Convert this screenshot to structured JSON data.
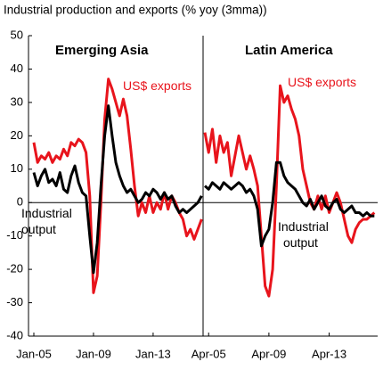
{
  "chart_data": {
    "type": "line",
    "title": "Industrial production and exports (% yoy (3mma))",
    "ylim": [
      -40,
      50
    ],
    "yticks": [
      -40,
      -30,
      -20,
      -10,
      0,
      10,
      20,
      30,
      40,
      50
    ],
    "grid": false,
    "panels": [
      {
        "title": "Emerging Asia",
        "xlim": [
          2005,
          2016.35
        ],
        "xticks": [
          {
            "value": 2005,
            "label": "Jan-05"
          },
          {
            "value": 2009,
            "label": "Jan-09"
          },
          {
            "value": 2013,
            "label": "Jan-13"
          }
        ],
        "x": [
          2005,
          2005.25,
          2005.5,
          2005.75,
          2006,
          2006.25,
          2006.5,
          2006.75,
          2007,
          2007.25,
          2007.5,
          2007.75,
          2008,
          2008.25,
          2008.5,
          2008.75,
          2009,
          2009.25,
          2009.5,
          2009.75,
          2010,
          2010.25,
          2010.5,
          2010.75,
          2011,
          2011.25,
          2011.5,
          2011.75,
          2012,
          2012.25,
          2012.5,
          2012.75,
          2013,
          2013.25,
          2013.5,
          2013.75,
          2014,
          2014.25,
          2014.5,
          2014.75,
          2015,
          2015.25,
          2015.5,
          2015.75,
          2016,
          2016.25
        ],
        "series": [
          {
            "color": "#e8141c",
            "values": [
              18,
              12,
              14,
              13,
              15,
              12,
              14,
              13,
              16,
              14,
              18,
              17,
              19,
              18,
              15,
              2,
              -27,
              -22,
              0,
              25,
              37,
              34,
              30,
              26,
              31,
              26,
              16,
              5,
              -4,
              0,
              -3,
              2,
              -3,
              0,
              -2,
              3,
              -2,
              2,
              0,
              -3,
              -5,
              -10,
              -8,
              -11,
              -8,
              -5
            ]
          },
          {
            "color": "#000000",
            "values": [
              9,
              5,
              8,
              10,
              6,
              7,
              5,
              9,
              4,
              3,
              8,
              11,
              6,
              3,
              2,
              -10,
              -21,
              -12,
              5,
              20,
              29,
              20,
              12,
              8,
              5,
              3,
              4,
              2,
              0,
              1,
              3,
              2,
              4,
              3,
              1,
              3,
              1,
              2,
              -1,
              -3,
              -2,
              -3,
              -2,
              -1,
              0,
              2
            ]
          }
        ],
        "annotations": [
          {
            "color": "#e8141c",
            "lines": [
              "US$ exports"
            ]
          },
          {
            "color": "#000000",
            "lines": [
              "Industrial",
              "output"
            ]
          }
        ]
      },
      {
        "title": "Latin America",
        "xlim": [
          2005,
          2016.35
        ],
        "xticks": [
          {
            "value": 2005.25,
            "label": "Apr-05"
          },
          {
            "value": 2009.25,
            "label": "Apr-09"
          },
          {
            "value": 2013.25,
            "label": "Apr-13"
          }
        ],
        "x": [
          2005,
          2005.25,
          2005.5,
          2005.75,
          2006,
          2006.25,
          2006.5,
          2006.75,
          2007,
          2007.25,
          2007.5,
          2007.75,
          2008,
          2008.25,
          2008.5,
          2008.75,
          2009,
          2009.25,
          2009.5,
          2009.75,
          2010,
          2010.25,
          2010.5,
          2010.75,
          2011,
          2011.25,
          2011.5,
          2011.75,
          2012,
          2012.25,
          2012.5,
          2012.75,
          2013,
          2013.25,
          2013.5,
          2013.75,
          2014,
          2014.25,
          2014.5,
          2014.75,
          2015,
          2015.25,
          2015.5,
          2015.75,
          2016,
          2016.25
        ],
        "series": [
          {
            "color": "#e8141c",
            "values": [
              21,
              15,
              22,
              12,
              20,
              15,
              18,
              8,
              14,
              20,
              15,
              10,
              14,
              10,
              5,
              -10,
              -25,
              -28,
              -20,
              5,
              35,
              30,
              32,
              28,
              25,
              20,
              10,
              5,
              0,
              -2,
              2,
              -2,
              2,
              -3,
              0,
              3,
              0,
              -5,
              -10,
              -12,
              -8,
              -6,
              -5,
              -5,
              -4,
              -3
            ]
          },
          {
            "color": "#000000",
            "values": [
              5,
              4,
              6,
              5,
              4,
              6,
              5,
              4,
              5,
              6,
              5,
              3,
              4,
              2,
              -2,
              -13,
              -10,
              -8,
              0,
              12,
              12,
              8,
              6,
              5,
              4,
              2,
              0,
              -1,
              1,
              -2,
              0,
              2,
              -1,
              -2,
              0,
              1,
              -2,
              -3,
              -2,
              -1,
              -3,
              -3,
              -4,
              -3,
              -4,
              -4
            ]
          }
        ],
        "annotations": [
          {
            "color": "#e8141c",
            "lines": [
              "US$ exports"
            ]
          },
          {
            "color": "#000000",
            "lines": [
              "Industrial",
              "output"
            ]
          }
        ]
      }
    ]
  }
}
